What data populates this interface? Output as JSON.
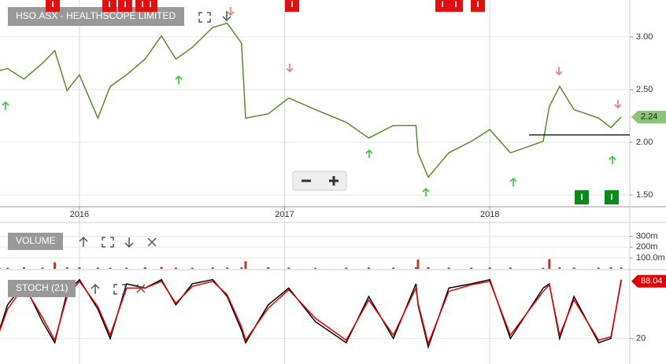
{
  "chart_data": [
    {
      "type": "line",
      "title": "HSO.ASX - HEALTHSCOPE LIMITED",
      "x": [
        2015.61,
        2015.65,
        2015.73,
        2015.82,
        2015.88,
        2015.94,
        2016.0,
        2016.09,
        2016.15,
        2016.23,
        2016.32,
        2016.4,
        2016.47,
        2016.55,
        2016.65,
        2016.72,
        2016.79,
        2016.81,
        2016.92,
        2017.02,
        2017.15,
        2017.3,
        2017.41,
        2017.53,
        2017.64,
        2017.65,
        2017.7,
        2017.8,
        2017.91,
        2018.0,
        2018.1,
        2018.26,
        2018.29,
        2018.34,
        2018.41,
        2018.53,
        2018.59,
        2018.64
      ],
      "series": [
        {
          "color": "#5b8a2a",
          "values": [
            2.68,
            2.7,
            2.6,
            2.75,
            2.87,
            2.49,
            2.64,
            2.23,
            2.53,
            2.64,
            2.79,
            3.01,
            2.79,
            2.9,
            3.09,
            3.13,
            2.94,
            2.23,
            2.27,
            2.42,
            2.31,
            2.19,
            2.04,
            2.16,
            2.16,
            1.9,
            1.67,
            1.9,
            2.01,
            2.12,
            1.9,
            2.01,
            2.34,
            2.53,
            2.31,
            2.23,
            2.14,
            2.24
          ]
        }
      ],
      "xlim": [
        2015.613,
        2018.682
      ],
      "xticks": [
        2016,
        2017,
        2018
      ],
      "ylim": [
        1.396,
        3.35
      ],
      "yticks": [
        {
          "value": 1.5,
          "label": "1.50"
        },
        {
          "value": 2,
          "label": "2.00"
        },
        {
          "value": 2.5,
          "label": "2.50"
        },
        {
          "value": 3,
          "label": "3.00"
        }
      ],
      "grid": true,
      "last_value": 2.24,
      "support_level": 2.07
    },
    {
      "type": "bar",
      "title": "VOLUME",
      "x": [
        2015.61,
        2015.65,
        2015.73,
        2015.82,
        2015.88,
        2015.94,
        2016.0,
        2016.09,
        2016.15,
        2016.23,
        2016.32,
        2016.4,
        2016.47,
        2016.55,
        2016.65,
        2016.72,
        2016.79,
        2016.81,
        2016.92,
        2017.02,
        2017.15,
        2017.3,
        2017.41,
        2017.53,
        2017.64,
        2017.65,
        2017.7,
        2017.8,
        2017.91,
        2018.0,
        2018.1,
        2018.26,
        2018.29,
        2018.34,
        2018.41,
        2018.53,
        2018.59,
        2018.64
      ],
      "values": [
        12,
        10,
        14,
        11,
        60,
        13,
        15,
        12,
        10,
        11,
        14,
        18,
        12,
        11,
        13,
        12,
        14,
        70,
        15,
        12,
        10,
        11,
        13,
        12,
        14,
        85,
        16,
        12,
        11,
        13,
        12,
        10,
        90,
        14,
        12,
        11,
        13,
        12
      ],
      "color": "#b33c2a",
      "xlim": [
        2015.613,
        2018.682
      ],
      "ylim": [
        0,
        426
      ],
      "yticks": [
        {
          "value": 100,
          "label": "100.0m"
        },
        {
          "value": 200,
          "label": "200m"
        },
        {
          "value": 300,
          "label": "300m"
        }
      ],
      "grid": true
    },
    {
      "type": "line",
      "title": "STOCH (21)",
      "x": [
        2015.61,
        2015.65,
        2015.73,
        2015.82,
        2015.88,
        2015.94,
        2016.0,
        2016.09,
        2016.15,
        2016.23,
        2016.32,
        2016.4,
        2016.47,
        2016.55,
        2016.65,
        2016.72,
        2016.79,
        2016.81,
        2016.92,
        2017.02,
        2017.15,
        2017.3,
        2017.41,
        2017.53,
        2017.64,
        2017.65,
        2017.7,
        2017.8,
        2017.91,
        2018.0,
        2018.1,
        2018.26,
        2018.29,
        2018.34,
        2018.41,
        2018.53,
        2018.59,
        2018.64
      ],
      "series": [
        {
          "color": "#000000",
          "values": [
            30,
            60,
            85,
            40,
            15,
            75,
            90,
            55,
            20,
            85,
            80,
            90,
            60,
            85,
            90,
            70,
            30,
            15,
            60,
            80,
            40,
            15,
            70,
            20,
            85,
            60,
            10,
            80,
            85,
            90,
            20,
            80,
            85,
            20,
            70,
            15,
            20,
            90
          ]
        },
        {
          "color": "#e00000",
          "values": [
            28,
            55,
            82,
            45,
            18,
            70,
            88,
            58,
            24,
            80,
            80,
            88,
            62,
            82,
            88,
            72,
            34,
            18,
            56,
            78,
            44,
            18,
            66,
            24,
            80,
            62,
            14,
            76,
            84,
            88,
            24,
            76,
            84,
            24,
            66,
            18,
            22,
            88.04
          ]
        }
      ],
      "xlim": [
        2015.613,
        2018.682
      ],
      "ylim": [
        -7.5,
        100
      ],
      "yticks": [
        20
      ],
      "grid": true,
      "last_value": 88.04
    }
  ],
  "marker_label": "I"
}
